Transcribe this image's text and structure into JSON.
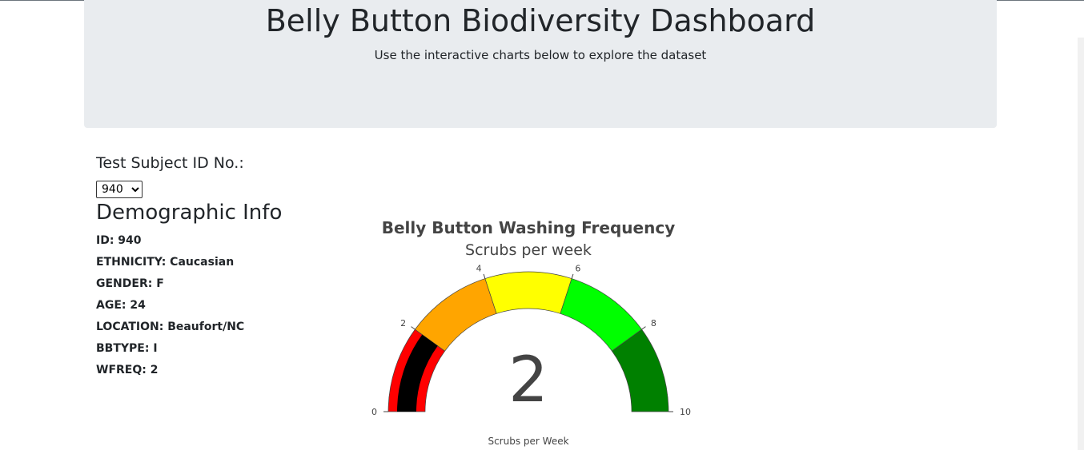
{
  "header": {
    "title": "Belly Button Biodiversity Dashboard",
    "subtitle": "Use the interactive charts below to explore the dataset"
  },
  "selector": {
    "label": "Test Subject ID No.:",
    "selected": "940"
  },
  "demographics": {
    "title": "Demographic Info",
    "items": [
      "ID: 940",
      "ETHNICITY: Caucasian",
      "GENDER: F",
      "AGE: 24",
      "LOCATION: Beaufort/NC",
      "BBTYPE: I",
      "WFREQ: 2"
    ]
  },
  "chart_data": {
    "type": "gauge",
    "title": "Belly Button Washing Frequency",
    "subtitle": "Scrubs per week",
    "xlabel": "Scrubs per Week",
    "value": 2,
    "range": [
      0,
      10
    ],
    "ticks": [
      0,
      2,
      4,
      6,
      8,
      10
    ],
    "bands": [
      {
        "from": 0,
        "to": 2,
        "color": "#ff0000"
      },
      {
        "from": 2,
        "to": 4,
        "color": "#ffa500"
      },
      {
        "from": 4,
        "to": 6,
        "color": "#ffff00"
      },
      {
        "from": 6,
        "to": 8,
        "color": "#00ff00"
      },
      {
        "from": 8,
        "to": 10,
        "color": "#008000"
      }
    ],
    "bar_color": "#000000"
  }
}
